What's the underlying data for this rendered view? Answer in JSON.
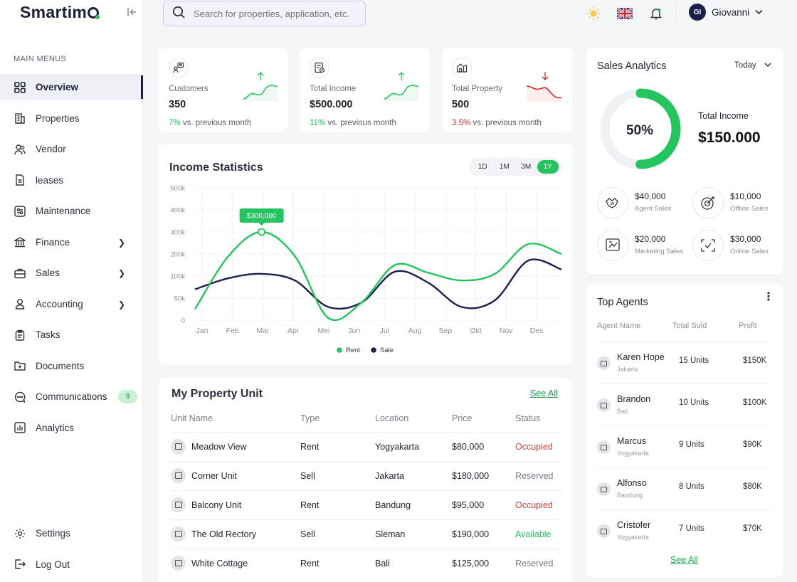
{
  "app": {
    "name": "Smartimo"
  },
  "sidebar": {
    "heading": "MAIN MENUS",
    "items": [
      {
        "label": "Overview",
        "icon": "grid-icon",
        "active": true
      },
      {
        "label": "Properties",
        "icon": "building-icon"
      },
      {
        "label": "Vendor",
        "icon": "users-icon"
      },
      {
        "label": "leases",
        "icon": "document-icon"
      },
      {
        "label": "Maintenance",
        "icon": "tools-icon"
      },
      {
        "label": "Finance",
        "icon": "bank-icon",
        "chevron": true
      },
      {
        "label": "Sales",
        "icon": "briefcase-icon",
        "chevron": true
      },
      {
        "label": "Accounting",
        "icon": "user-icon",
        "chevron": true
      },
      {
        "label": "Tasks",
        "icon": "clipboard-icon"
      },
      {
        "label": "Documents",
        "icon": "folder-icon"
      },
      {
        "label": "Communications",
        "icon": "chat-icon",
        "badge": "9"
      },
      {
        "label": "Analytics",
        "icon": "bar-chart-icon"
      }
    ],
    "bottom": [
      {
        "label": "Settings",
        "icon": "gear-icon"
      },
      {
        "label": "Log Out",
        "icon": "logout-icon"
      }
    ]
  },
  "topbar": {
    "search_placeholder": "Search for properties, application, etc.",
    "user": {
      "initials": "GI",
      "name": "Giovanni"
    }
  },
  "stats": [
    {
      "label": "Customers",
      "value": "350",
      "change": "7%",
      "change_text": " vs. previous month",
      "trend": "up"
    },
    {
      "label": "Total Income",
      "value": "$500.000",
      "change": "11%",
      "change_text": " vs. previous month",
      "trend": "up"
    },
    {
      "label": "Total Property",
      "value": "500",
      "change": "3.5%",
      "change_text": " vs. previous month",
      "trend": "down"
    }
  ],
  "income_statistics": {
    "title": "Income Statistics",
    "ranges": [
      "1D",
      "1M",
      "3M",
      "1Y"
    ],
    "selected_range": "1Y",
    "tooltip": "$300,000"
  },
  "chart_data": {
    "type": "line",
    "x": [
      "Jan",
      "Feb",
      "Mar",
      "Apr",
      "Mei",
      "Jun",
      "Jul",
      "Aug",
      "Sep",
      "Okt",
      "Nov",
      "Des"
    ],
    "y_ticks": [
      "500k",
      "400k",
      "300k",
      "200k",
      "100k",
      "50k",
      "0"
    ],
    "ylim": [
      0,
      500000
    ],
    "series": [
      {
        "name": "Rent",
        "color": "#22c55e",
        "values": [
          25000,
          190000,
          300000,
          190000,
          5000,
          40000,
          150000,
          115000,
          90000,
          110000,
          245000,
          200000
        ]
      },
      {
        "name": "Sale",
        "color": "#1b1f4b",
        "values": [
          70000,
          95000,
          110000,
          90000,
          30000,
          40000,
          120000,
          85000,
          30000,
          45000,
          170000,
          130000
        ]
      }
    ],
    "legend": "bottom-center"
  },
  "sales_analytics": {
    "title": "Sales Analytics",
    "period": "Today",
    "percent": "50%",
    "percent_value": 0.5,
    "total_label": "Total Income",
    "total_value": "$150.000",
    "channels": [
      {
        "value": "$40,000",
        "label": "Agent Sales",
        "icon": "handshake-icon"
      },
      {
        "value": "$10,000",
        "label": "Offline Sales",
        "icon": "target-icon"
      },
      {
        "value": "$20,000",
        "label": "Marketing Sales",
        "icon": "presentation-icon"
      },
      {
        "value": "$30,000",
        "label": "Online Sales",
        "icon": "online-sales-icon"
      }
    ]
  },
  "top_agents": {
    "title": "Top Agents",
    "headers": {
      "name": "Agent Name",
      "sold": "Total Sold",
      "profit": "Profit"
    },
    "rows": [
      {
        "name": "Karen Hope",
        "city": "Jakarta",
        "units": "15 Units",
        "profit": "$150K"
      },
      {
        "name": "Brandon",
        "city": "Bali",
        "units": "10 Units",
        "profit": "$100K"
      },
      {
        "name": "Marcus",
        "city": "Yogyakarta",
        "units": "9 Units",
        "profit": "$90K"
      },
      {
        "name": "Alfonso",
        "city": "Bandung",
        "units": "8 Units",
        "profit": "$80K"
      },
      {
        "name": "Cristofer",
        "city": "Yogyakarta",
        "units": "7 Units",
        "profit": "$70K"
      }
    ],
    "see_all": "See All"
  },
  "property_unit": {
    "title": "My Property Unit",
    "see_all": "See All",
    "headers": {
      "name": "Unit Name",
      "type": "Type",
      "location": "Location",
      "price": "Price",
      "status": "Status"
    },
    "rows": [
      {
        "name": "Meadow View",
        "type": "Rent",
        "location": "Yogyakarta",
        "price": "$80,000",
        "status": "Occupied",
        "status_class": "st-occ"
      },
      {
        "name": "Corner Unit",
        "type": "Sell",
        "location": "Jakarta",
        "price": "$180,000",
        "status": "Reserved",
        "status_class": "st-res"
      },
      {
        "name": "Balcony Unit",
        "type": "Rent",
        "location": "Bandung",
        "price": "$95,000",
        "status": "Occupied",
        "status_class": "st-occ"
      },
      {
        "name": "The Old Rectory",
        "type": "Sell",
        "location": "Sleman",
        "price": "$190,000",
        "status": "Available",
        "status_class": "st-av"
      },
      {
        "name": "White Cottage",
        "type": "Rent",
        "location": "Bali",
        "price": "$125,000",
        "status": "Reserved",
        "status_class": "st-res"
      }
    ]
  }
}
